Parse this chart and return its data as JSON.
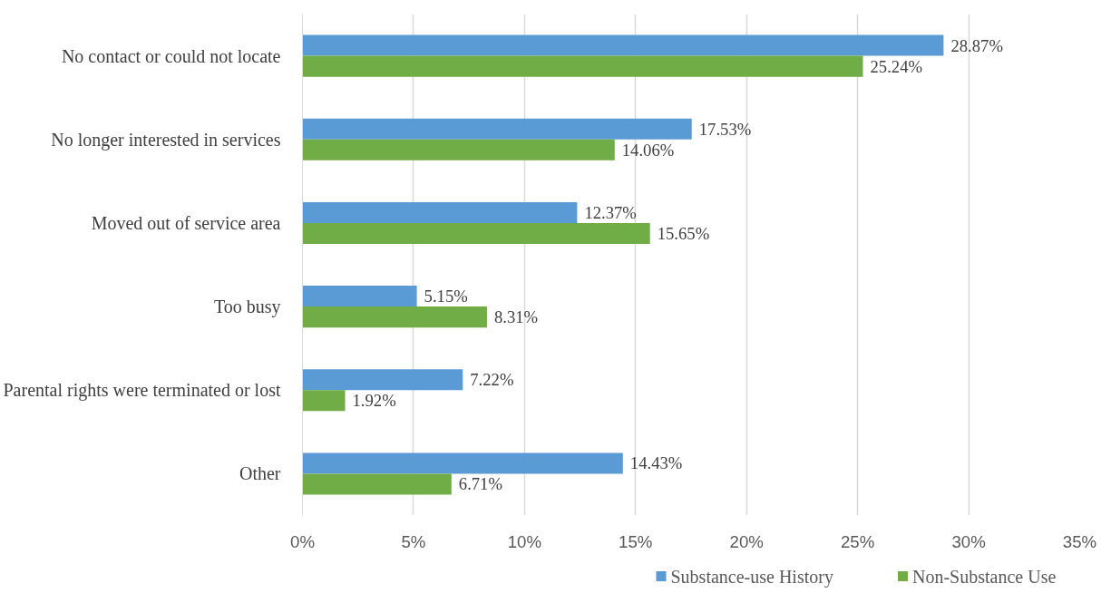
{
  "chart_data": {
    "type": "bar",
    "orientation": "horizontal",
    "categories": [
      "No contact or could not locate",
      "No longer interested in services",
      "Moved out of service area",
      "Too busy",
      "Parental rights were terminated or lost",
      "Other"
    ],
    "series": [
      {
        "name": "Substance-use History",
        "color": "#5b9bd5",
        "values": [
          28.87,
          17.53,
          12.37,
          5.15,
          7.22,
          14.43
        ],
        "value_labels": [
          "28.87%",
          "17.53%",
          "12.37%",
          "5.15%",
          "7.22%",
          "14.43%"
        ]
      },
      {
        "name": "Non-Substance Use",
        "color": "#70ad47",
        "values": [
          25.24,
          14.06,
          15.65,
          8.31,
          1.92,
          6.71
        ],
        "value_labels": [
          "25.24%",
          "14.06%",
          "15.65%",
          "8.31%",
          "1.92%",
          "6.71%"
        ]
      }
    ],
    "xlim": [
      0,
      35
    ],
    "xticks": [
      {
        "value": 0,
        "label": "0%"
      },
      {
        "value": 5,
        "label": "5%"
      },
      {
        "value": 10,
        "label": "10%"
      },
      {
        "value": 15,
        "label": "15%"
      },
      {
        "value": 20,
        "label": "20%"
      },
      {
        "value": 25,
        "label": "25%"
      },
      {
        "value": 30,
        "label": "30%"
      },
      {
        "value": 35,
        "label": "35%"
      }
    ],
    "grid": "x",
    "legend": "bottom"
  }
}
